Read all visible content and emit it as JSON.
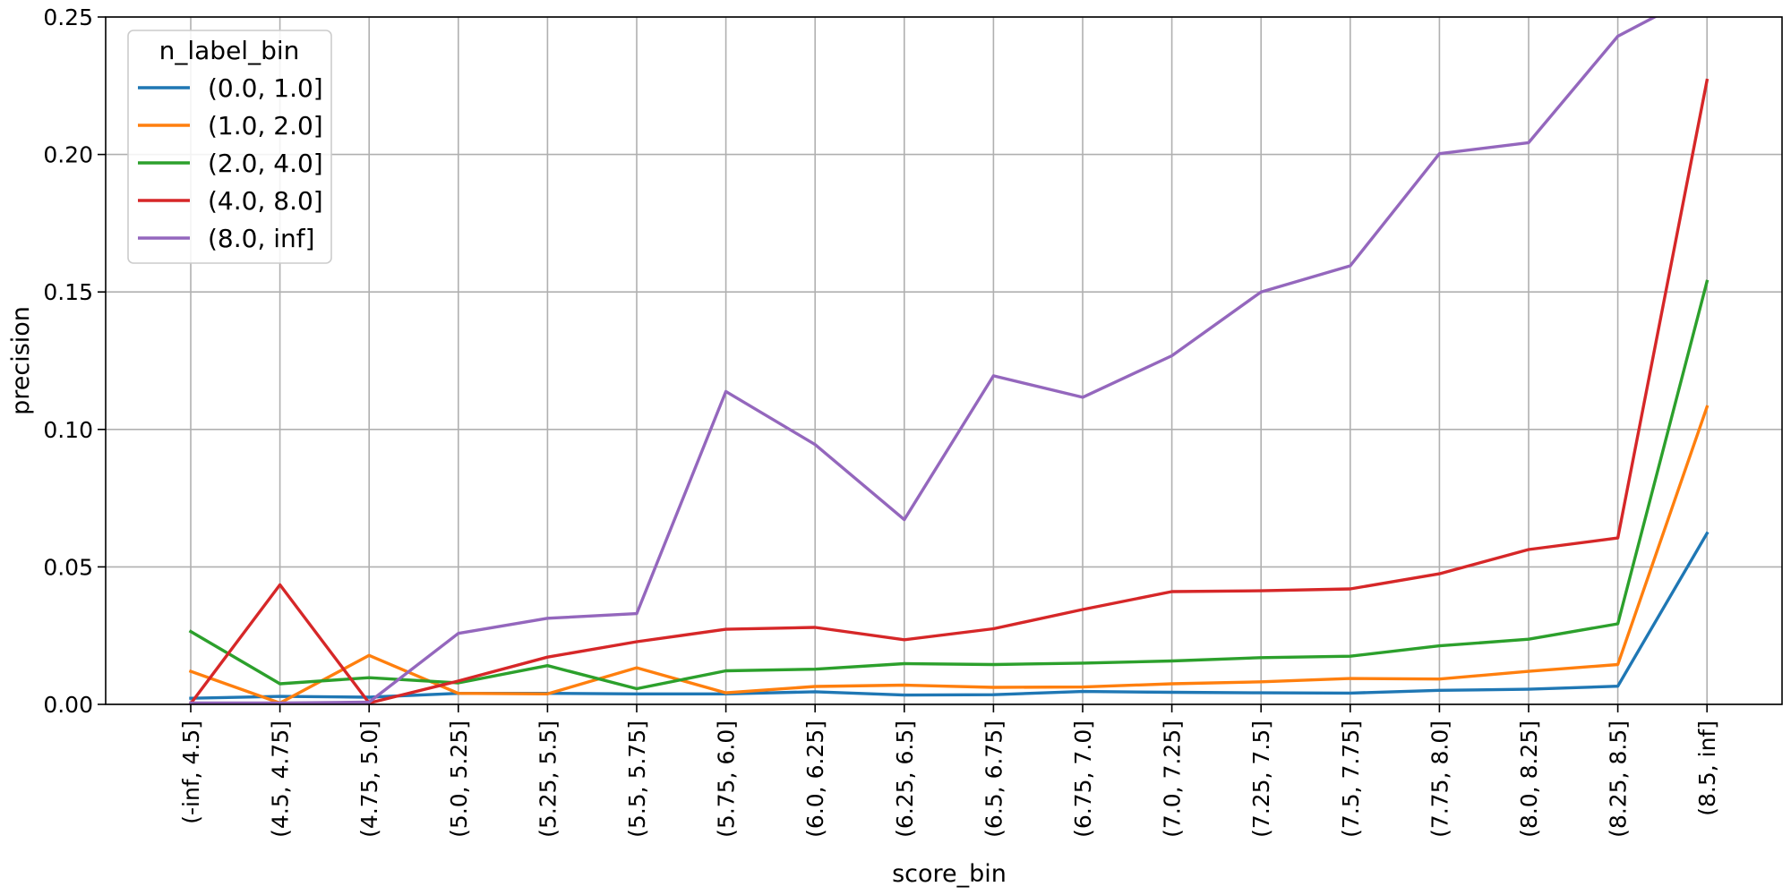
{
  "chart_data": {
    "type": "line",
    "xlabel": "score_bin",
    "ylabel": "precision",
    "ylim": [
      0,
      0.25
    ],
    "yticks": [
      "0.00",
      "0.05",
      "0.10",
      "0.15",
      "0.20",
      "0.25"
    ],
    "ytick_values": [
      0,
      0.05,
      0.1,
      0.15,
      0.2,
      0.25
    ],
    "grid": true,
    "legend_title": "n_label_bin",
    "legend_position": "top-left",
    "categories": [
      "(-inf, 4.5]",
      "(4.5, 4.75]",
      "(4.75, 5.0]",
      "(5.0, 5.25]",
      "(5.25, 5.5]",
      "(5.5, 5.75]",
      "(5.75, 6.0]",
      "(6.0, 6.25]",
      "(6.25, 6.5]",
      "(6.5, 6.75]",
      "(6.75, 7.0]",
      "(7.0, 7.25]",
      "(7.25, 7.5]",
      "(7.5, 7.75]",
      "(7.75, 8.0]",
      "(8.0, 8.25]",
      "(8.25, 8.5]",
      "(8.5, inf]"
    ],
    "series": [
      {
        "name": "(0.0, 1.0]",
        "color": "#1f77b4",
        "values": [
          0.0022,
          0.0029,
          0.0026,
          0.004,
          0.004,
          0.0038,
          0.0038,
          0.0046,
          0.0034,
          0.0035,
          0.0047,
          0.0044,
          0.0042,
          0.0041,
          0.0051,
          0.0055,
          0.0066,
          0.0622
        ]
      },
      {
        "name": "(1.0, 2.0]",
        "color": "#ff7f0e",
        "values": [
          0.012,
          0.0005,
          0.0178,
          0.004,
          0.0038,
          0.0133,
          0.0042,
          0.0065,
          0.007,
          0.0062,
          0.0063,
          0.0075,
          0.0082,
          0.0094,
          0.0092,
          0.012,
          0.0145,
          0.1082
        ]
      },
      {
        "name": "(2.0, 4.0]",
        "color": "#2ca02c",
        "values": [
          0.0265,
          0.0075,
          0.0097,
          0.0078,
          0.0141,
          0.0057,
          0.0122,
          0.0128,
          0.0148,
          0.0145,
          0.015,
          0.0158,
          0.017,
          0.0175,
          0.0213,
          0.0237,
          0.0293,
          0.1538
        ]
      },
      {
        "name": "(4.0, 8.0]",
        "color": "#d62728",
        "values": [
          0.0003,
          0.0435,
          0.0005,
          0.0085,
          0.0172,
          0.0228,
          0.0273,
          0.028,
          0.0235,
          0.0275,
          0.0345,
          0.041,
          0.0413,
          0.042,
          0.0475,
          0.0563,
          0.0605,
          0.227
        ]
      },
      {
        "name": "(8.0, inf]",
        "color": "#9467bd",
        "values": [
          0.0005,
          0.0005,
          0.0008,
          0.0258,
          0.0313,
          0.033,
          0.1138,
          0.0945,
          0.0672,
          0.1195,
          0.1117,
          0.1268,
          0.15,
          0.1595,
          0.2003,
          0.2043,
          0.243,
          0.26
        ]
      }
    ]
  }
}
